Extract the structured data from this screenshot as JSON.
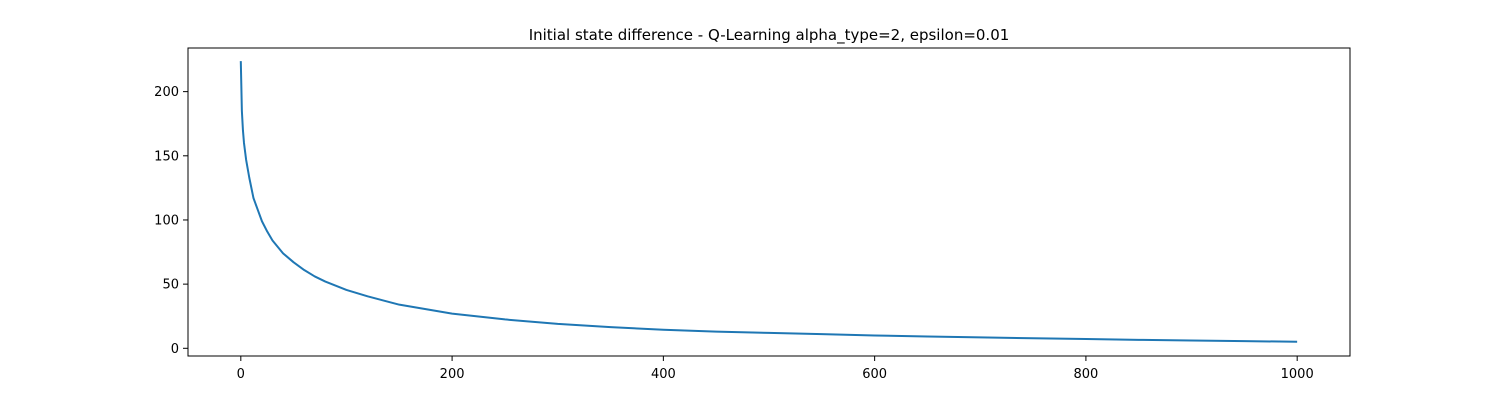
{
  "chart_data": {
    "type": "line",
    "title": "Initial state difference - Q-Learning alpha_type=2, epsilon=0.01",
    "xlabel": "",
    "ylabel": "",
    "xlim": [
      -50,
      1050
    ],
    "ylim": [
      -6,
      234
    ],
    "xticks": [
      0,
      200,
      400,
      600,
      800,
      1000
    ],
    "yticks": [
      0,
      50,
      100,
      150,
      200
    ],
    "grid": false,
    "series": [
      {
        "color": "#1f77b4",
        "x": [
          0,
          1,
          2,
          3,
          5,
          8,
          12,
          16,
          20,
          25,
          30,
          40,
          50,
          60,
          70,
          80,
          100,
          120,
          150,
          175,
          200,
          250,
          300,
          350,
          400,
          450,
          500,
          550,
          600,
          650,
          700,
          750,
          800,
          850,
          900,
          950,
          999
        ],
        "y": [
          223,
          185,
          170,
          160,
          147,
          133,
          117,
          108,
          99,
          91,
          84,
          74,
          67,
          61,
          56,
          52,
          45.5,
          40.5,
          34,
          30.5,
          27,
          22.5,
          19,
          16.5,
          14.5,
          13,
          12,
          11,
          10,
          9.2,
          8.5,
          7.8,
          7.2,
          6.6,
          6.1,
          5.6,
          5.1
        ]
      }
    ]
  }
}
